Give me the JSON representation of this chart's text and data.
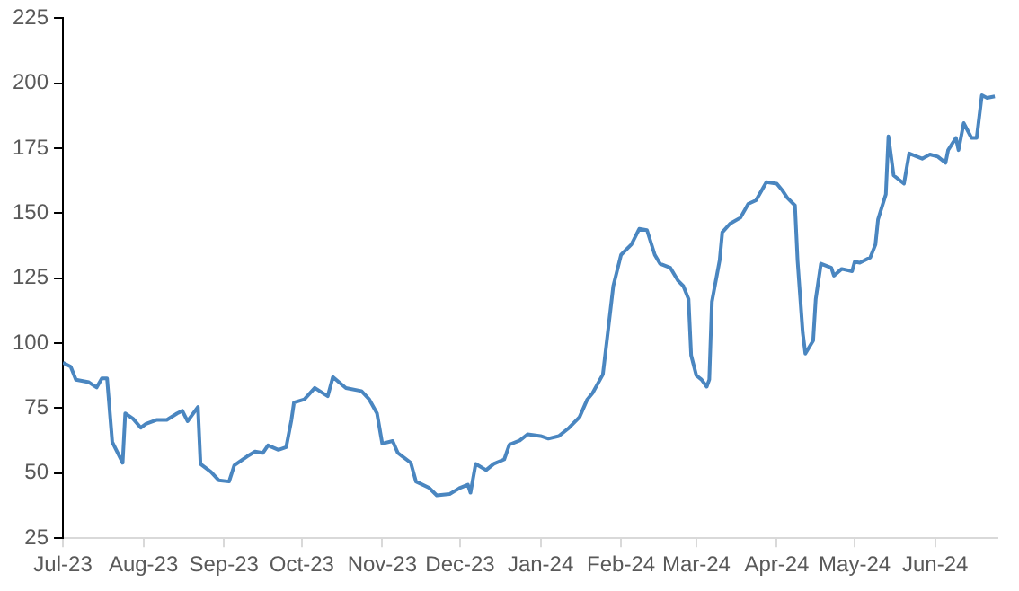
{
  "chart_data": {
    "type": "line",
    "x": [
      "2023-07-01",
      "2023-07-04",
      "2023-07-06",
      "2023-07-11",
      "2023-07-14",
      "2023-07-16",
      "2023-07-18",
      "2023-07-20",
      "2023-07-24",
      "2023-07-25",
      "2023-07-28",
      "2023-07-31",
      "2023-08-02",
      "2023-08-06",
      "2023-08-10",
      "2023-08-14",
      "2023-08-16",
      "2023-08-18",
      "2023-08-22",
      "2023-08-23",
      "2023-08-27",
      "2023-08-30",
      "2023-09-03",
      "2023-09-05",
      "2023-09-10",
      "2023-09-13",
      "2023-09-16",
      "2023-09-18",
      "2023-09-22",
      "2023-09-25",
      "2023-09-27",
      "2023-09-28",
      "2023-10-02",
      "2023-10-06",
      "2023-10-11",
      "2023-10-13",
      "2023-10-18",
      "2023-10-24",
      "2023-10-27",
      "2023-10-30",
      "2023-11-01",
      "2023-11-05",
      "2023-11-07",
      "2023-11-12",
      "2023-11-14",
      "2023-11-19",
      "2023-11-22",
      "2023-11-27",
      "2023-12-01",
      "2023-12-04",
      "2023-12-05",
      "2023-12-07",
      "2023-12-11",
      "2023-12-14",
      "2023-12-18",
      "2023-12-20",
      "2023-12-24",
      "2023-12-27",
      "2024-01-01",
      "2024-01-04",
      "2024-01-08",
      "2024-01-12",
      "2024-01-16",
      "2024-01-19",
      "2024-01-21",
      "2024-01-25",
      "2024-01-27",
      "2024-01-29",
      "2024-02-01",
      "2024-02-05",
      "2024-02-08",
      "2024-02-11",
      "2024-02-14",
      "2024-02-16",
      "2024-02-20",
      "2024-02-23",
      "2024-02-25",
      "2024-02-27",
      "2024-02-28",
      "2024-03-01",
      "2024-03-03",
      "2024-03-05",
      "2024-03-06",
      "2024-03-07",
      "2024-03-10",
      "2024-03-11",
      "2024-03-14",
      "2024-03-18",
      "2024-03-21",
      "2024-03-24",
      "2024-03-28",
      "2024-04-01",
      "2024-04-03",
      "2024-04-05",
      "2024-04-08",
      "2024-04-09",
      "2024-04-11",
      "2024-04-12",
      "2024-04-15",
      "2024-04-16",
      "2024-04-18",
      "2024-04-22",
      "2024-04-23",
      "2024-04-26",
      "2024-04-30",
      "2024-05-01",
      "2024-05-03",
      "2024-05-07",
      "2024-05-09",
      "2024-05-10",
      "2024-05-13",
      "2024-05-14",
      "2024-05-16",
      "2024-05-20",
      "2024-05-22",
      "2024-05-27",
      "2024-05-30",
      "2024-06-02",
      "2024-06-05",
      "2024-06-06",
      "2024-06-09",
      "2024-06-10",
      "2024-06-12",
      "2024-06-15",
      "2024-06-17",
      "2024-06-19",
      "2024-06-21",
      "2024-06-24"
    ],
    "series": [
      {
        "color": "#4a86c0",
        "values": [
          92.5,
          91,
          86,
          85,
          83,
          86.5,
          86.5,
          62,
          54,
          73,
          71,
          67.5,
          69,
          70.5,
          70.5,
          73,
          74,
          70,
          75.5,
          53.5,
          50.5,
          47.3,
          46.8,
          53,
          56.5,
          58.3,
          57.8,
          60.7,
          59,
          60,
          70.4,
          77.2,
          78.4,
          82.8,
          79.6,
          87,
          82.8,
          81.6,
          78.4,
          73,
          61.4,
          62.4,
          57.8,
          54,
          46.8,
          44.4,
          41.5,
          42,
          44.4,
          45.6,
          42.5,
          53.6,
          51.2,
          53.6,
          55.3,
          61,
          62.6,
          65,
          64.3,
          63.3,
          64.3,
          67.5,
          71.6,
          78.4,
          80.8,
          88,
          105,
          122,
          134,
          138,
          144,
          143.5,
          134,
          130.6,
          129,
          124,
          122,
          117,
          95.4,
          87.6,
          86,
          83.3,
          86,
          116,
          132,
          142.7,
          146,
          148.3,
          153.6,
          155,
          162,
          161.4,
          159,
          156,
          153,
          131.8,
          104,
          96,
          101,
          117,
          130.6,
          129,
          126,
          128.6,
          127.7,
          131.3,
          131,
          133,
          138,
          147.6,
          157.3,
          179.6,
          164.6,
          161.4,
          173,
          171,
          172.6,
          171.8,
          169.4,
          174.3,
          179,
          174.3,
          184.7,
          179,
          179,
          195.4,
          194.4,
          195
        ]
      }
    ],
    "xlim": [
      "2023-07-01",
      "2024-06-25"
    ],
    "xticks": [
      {
        "value": "2023-07-01",
        "label": "Jul-23"
      },
      {
        "value": "2023-08-01",
        "label": "Aug-23"
      },
      {
        "value": "2023-09-01",
        "label": "Sep-23"
      },
      {
        "value": "2023-10-01",
        "label": "Oct-23"
      },
      {
        "value": "2023-11-01",
        "label": "Nov-23"
      },
      {
        "value": "2023-12-01",
        "label": "Dec-23"
      },
      {
        "value": "2024-01-01",
        "label": "Jan-24"
      },
      {
        "value": "2024-02-01",
        "label": "Feb-24"
      },
      {
        "value": "2024-03-01",
        "label": "Mar-24"
      },
      {
        "value": "2024-04-01",
        "label": "Apr-24"
      },
      {
        "value": "2024-05-01",
        "label": "May-24"
      },
      {
        "value": "2024-06-01",
        "label": "Jun-24"
      }
    ],
    "ylim": [
      25,
      225
    ],
    "yticks": [
      25,
      50,
      75,
      100,
      125,
      150,
      175,
      200,
      225
    ],
    "grid": false,
    "legend": false,
    "marker": "none",
    "line_style": "solid"
  }
}
